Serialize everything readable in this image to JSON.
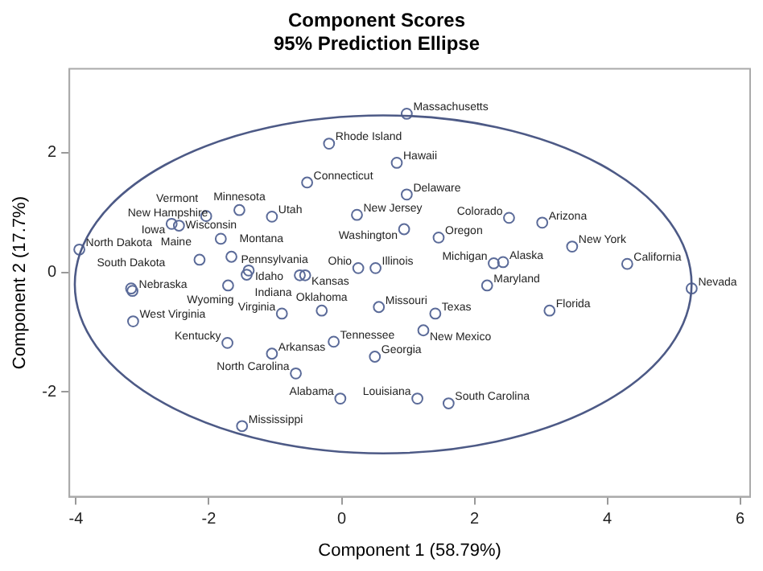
{
  "chart_data": {
    "type": "scatter",
    "title": "Component Scores",
    "subtitle": "95% Prediction Ellipse",
    "xlabel": "Component 1 (58.79%)",
    "ylabel": "Component 2 (17.7%)",
    "xlim": [
      -4.1,
      6.15
    ],
    "xticks": [
      -4,
      -2,
      0,
      2,
      4,
      6
    ],
    "ylim": [
      -3.75,
      3.4
    ],
    "yticks": [
      -2,
      0,
      2
    ],
    "grid": false,
    "legend": false,
    "marker": "circle",
    "series": [
      {
        "color": "#5b6b99",
        "x": [
          0.98,
          -0.19,
          0.83,
          0.98,
          -0.52,
          0.23,
          0.94,
          2.52,
          3.02,
          1.46,
          2.43,
          2.29,
          3.47,
          4.3,
          5.27,
          0.25,
          0.51,
          2.19,
          3.13,
          0.56,
          1.41,
          -0.3,
          1.23,
          -0.12,
          0.5,
          1.14,
          1.61,
          -0.02,
          -1.05,
          -0.69,
          -1.5,
          -1.72,
          -0.9,
          -3.14,
          -3.15,
          -3.17,
          -1.71,
          -1.43,
          -1.4,
          -1.66,
          -2.14,
          -1.82,
          -0.63,
          -0.55,
          -1.05,
          -1.54,
          -2.04,
          -2.56,
          -2.45,
          -3.95
        ],
        "values": [
          2.65,
          2.15,
          1.83,
          1.3,
          1.5,
          0.96,
          0.72,
          0.91,
          0.83,
          0.58,
          0.17,
          0.15,
          0.43,
          0.14,
          -0.27,
          0.07,
          0.07,
          -0.22,
          -0.64,
          -0.58,
          -0.69,
          -0.64,
          -0.97,
          -1.16,
          -1.41,
          -2.11,
          -2.19,
          -2.11,
          -1.36,
          -1.69,
          -2.57,
          -1.18,
          -0.69,
          -0.82,
          -0.31,
          -0.27,
          -0.22,
          -0.04,
          0.03,
          0.26,
          0.21,
          0.56,
          -0.05,
          -0.05,
          0.93,
          1.04,
          0.94,
          0.81,
          0.78,
          0.38
        ]
      }
    ],
    "annotations": [
      {
        "text": "Massachusetts",
        "x": 0.98,
        "y": 2.65
      },
      {
        "text": "Rhode Island",
        "x": -0.19,
        "y": 2.15
      },
      {
        "text": "Hawaii",
        "x": 0.83,
        "y": 1.83
      },
      {
        "text": "Delaware",
        "x": 0.98,
        "y": 1.3
      },
      {
        "text": "Connecticut",
        "x": -0.52,
        "y": 1.5
      },
      {
        "text": "New Jersey",
        "x": 0.23,
        "y": 0.96
      },
      {
        "text": "Washington",
        "x": 0.94,
        "y": 0.72
      },
      {
        "text": "Colorado",
        "x": 2.52,
        "y": 0.91
      },
      {
        "text": "Arizona",
        "x": 3.02,
        "y": 0.83
      },
      {
        "text": "Oregon",
        "x": 1.46,
        "y": 0.58
      },
      {
        "text": "Alaska",
        "x": 2.43,
        "y": 0.17
      },
      {
        "text": "Michigan",
        "x": 2.29,
        "y": 0.15
      },
      {
        "text": "New York",
        "x": 3.47,
        "y": 0.43
      },
      {
        "text": "California",
        "x": 4.3,
        "y": 0.14
      },
      {
        "text": "Nevada",
        "x": 5.27,
        "y": -0.27
      },
      {
        "text": "Ohio",
        "x": 0.25,
        "y": 0.07
      },
      {
        "text": "Illinois",
        "x": 0.51,
        "y": 0.07
      },
      {
        "text": "Maryland",
        "x": 2.19,
        "y": -0.22
      },
      {
        "text": "Florida",
        "x": 3.13,
        "y": -0.64
      },
      {
        "text": "Missouri",
        "x": 0.56,
        "y": -0.58
      },
      {
        "text": "Texas",
        "x": 1.41,
        "y": -0.69
      },
      {
        "text": "Oklahoma",
        "x": -0.3,
        "y": -0.64
      },
      {
        "text": "New Mexico",
        "x": 1.23,
        "y": -0.97
      },
      {
        "text": "Tennessee",
        "x": -0.12,
        "y": -1.16
      },
      {
        "text": "Georgia",
        "x": 0.5,
        "y": -1.41
      },
      {
        "text": "Louisiana",
        "x": 1.14,
        "y": -2.11
      },
      {
        "text": "South Carolina",
        "x": 1.61,
        "y": -2.19
      },
      {
        "text": "Alabama",
        "x": -0.02,
        "y": -2.11
      },
      {
        "text": "Arkansas",
        "x": -1.05,
        "y": -1.36
      },
      {
        "text": "North Carolina",
        "x": -0.69,
        "y": -1.69
      },
      {
        "text": "Mississippi",
        "x": -1.5,
        "y": -2.57
      },
      {
        "text": "Kentucky",
        "x": -1.72,
        "y": -1.18
      },
      {
        "text": "Virginia",
        "x": -0.9,
        "y": -0.69
      },
      {
        "text": "West Virginia",
        "x": -3.14,
        "y": -0.82
      },
      {
        "text": "Nebraska",
        "x": -3.15,
        "y": -0.31
      },
      {
        "text": "South Dakota",
        "x": -3.17,
        "y": -0.27
      },
      {
        "text": "Pennsylvania",
        "x": -1.71,
        "y": -0.22
      },
      {
        "text": "Wyoming",
        "x": -1.43,
        "y": -0.04
      },
      {
        "text": "Idaho",
        "x": -1.4,
        "y": 0.03
      },
      {
        "text": "Montana",
        "x": -1.66,
        "y": 0.26
      },
      {
        "text": "Maine",
        "x": -2.14,
        "y": 0.21
      },
      {
        "text": "New Hampshire",
        "x": -1.82,
        "y": 0.56
      },
      {
        "text": "Indiana",
        "x": -0.63,
        "y": -0.05
      },
      {
        "text": "Kansas",
        "x": -0.55,
        "y": -0.05
      },
      {
        "text": "Utah",
        "x": -1.05,
        "y": 0.93
      },
      {
        "text": "Minnesota",
        "x": -1.54,
        "y": 1.04
      },
      {
        "text": "Vermont",
        "x": -2.04,
        "y": 0.94
      },
      {
        "text": "Iowa",
        "x": -2.56,
        "y": 0.81
      },
      {
        "text": "Wisconsin",
        "x": -2.45,
        "y": 0.78
      },
      {
        "text": "North Dakota",
        "x": -3.95,
        "y": 0.38
      }
    ]
  }
}
